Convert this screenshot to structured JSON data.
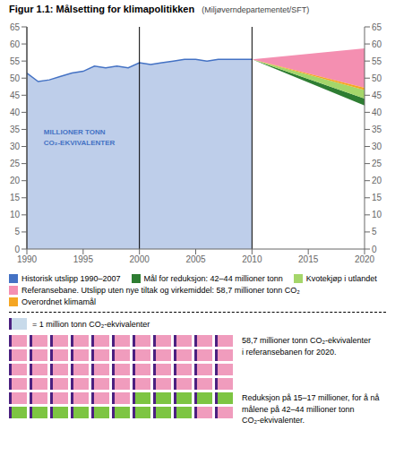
{
  "chart_data": [
    {
      "type": "area",
      "title": "Figur 1.1: Målsetting for klimapolitikken",
      "subtitle": "(Miljøverndepartementet/SFT)",
      "annotations": [
        "MILLIONER TONN\nCO₂-EKVIVALENTER"
      ],
      "series": [
        {
          "name": "Historisk utslipp 1990–2007",
          "color": "#4472c4",
          "x": [
            1990,
            1991,
            1992,
            1993,
            1994,
            1995,
            1996,
            1997,
            1998,
            1999,
            2000,
            2001,
            2002,
            2003,
            2004,
            2005,
            2006,
            2007,
            2008,
            2009,
            2010
          ],
          "values": [
            51.5,
            49.0,
            49.5,
            50.5,
            51.5,
            52.0,
            53.5,
            53.0,
            53.5,
            53.0,
            54.5,
            54.0,
            54.5,
            55.0,
            55.5,
            55.5,
            55.0,
            55.5,
            55.5,
            55.5,
            55.5
          ]
        },
        {
          "name": "Mål for reduksjon: 42–44 millioner tonn",
          "color": "#2e7d32",
          "x": [
            2010,
            2020
          ],
          "low": [
            55.5,
            42.0
          ],
          "high": [
            55.5,
            44.0
          ]
        },
        {
          "name": "Kvotekjøp i utlandet",
          "color": "#a5d66a",
          "x": [
            2010,
            2020
          ],
          "low": [
            55.5,
            44.0
          ],
          "high": [
            55.5,
            46.5
          ]
        },
        {
          "name": "Referansebane. Utslipp uten nye tiltak og virkemiddel: 58,7 millioner tonn CO₂",
          "color": "#f48fb1",
          "x": [
            2010,
            2020
          ],
          "low": [
            55.5,
            47.2
          ],
          "high": [
            55.5,
            58.7
          ]
        },
        {
          "name": "Overordnet klimamål",
          "color": "#f5a623",
          "x": [
            2010,
            2020
          ],
          "low": [
            55.5,
            46.5
          ],
          "high": [
            55.5,
            47.2
          ]
        }
      ],
      "vertical_lines": [
        1990,
        2000,
        2010
      ],
      "xlim": [
        1990,
        2020
      ],
      "xticks": [
        1990,
        1995,
        2000,
        2005,
        2010,
        2015,
        2020
      ],
      "ylim": [
        0,
        65
      ],
      "yticks": [
        0,
        5,
        10,
        15,
        20,
        25,
        30,
        35,
        40,
        45,
        50,
        55,
        60,
        65
      ],
      "y2lim": [
        0,
        65
      ],
      "y2ticks": [
        0,
        5,
        10,
        15,
        20,
        25,
        30,
        35,
        40,
        45,
        50,
        55,
        60,
        65
      ],
      "grid": false
    },
    {
      "type": "waffle",
      "unit_label": "= 1 million tonn CO₂-ekvivalenter",
      "unit_color": "#c8daea",
      "color": "#4b2080",
      "values": [
        50,
        14,
        2
      ],
      "colors": [
        "#f09cbd",
        "#7dc542",
        "#f09cbd"
      ],
      "annotations": [
        "58,7 millioner tonn CO₂-ekvivalenter\ni referansebanen for 2020.",
        "Reduksjon på 15–17 millioner, for å nå\nmålene på 42–44 millioner tonn\nCO₂-ekvivalenter."
      ]
    }
  ]
}
